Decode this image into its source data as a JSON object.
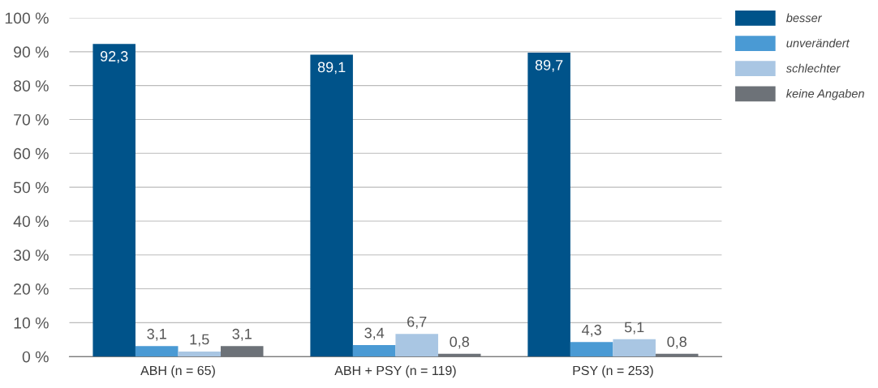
{
  "chart_data": {
    "type": "bar",
    "categories": [
      "ABH (n = 65)",
      "ABH + PSY (n = 119)",
      "PSY (n = 253)"
    ],
    "series": [
      {
        "name": "besser",
        "color": "#00538a",
        "values": [
          92.3,
          89.1,
          89.7
        ],
        "value_labels": [
          "92,3",
          "89,1",
          "89,7"
        ]
      },
      {
        "name": "unverändert",
        "color": "#4a9ad4",
        "values": [
          3.1,
          3.4,
          4.3
        ],
        "value_labels": [
          "3,1",
          "3,4",
          "4,3"
        ]
      },
      {
        "name": "schlechter",
        "color": "#a9c6e3",
        "values": [
          1.5,
          6.7,
          5.1
        ],
        "value_labels": [
          "1,5",
          "6,7",
          "5,1"
        ]
      },
      {
        "name": "keine Angaben",
        "color": "#6d7278",
        "values": [
          3.1,
          0.8,
          0.8
        ],
        "value_labels": [
          "3,1",
          "0,8",
          "0,8"
        ]
      }
    ],
    "ylim": [
      0,
      100
    ],
    "yticks": [
      {
        "value": 0,
        "label": "0 %"
      },
      {
        "value": 10,
        "label": "10 %"
      },
      {
        "value": 20,
        "label": "20 %"
      },
      {
        "value": 30,
        "label": "30 %"
      },
      {
        "value": 40,
        "label": "40 %"
      },
      {
        "value": 50,
        "label": "50 %"
      },
      {
        "value": 60,
        "label": "60 %"
      },
      {
        "value": 70,
        "label": "70 %"
      },
      {
        "value": 80,
        "label": "80 %"
      },
      {
        "value": 90,
        "label": "90 %"
      },
      {
        "value": 100,
        "label": "100 %"
      }
    ],
    "grid": "y",
    "legend": "top right"
  }
}
